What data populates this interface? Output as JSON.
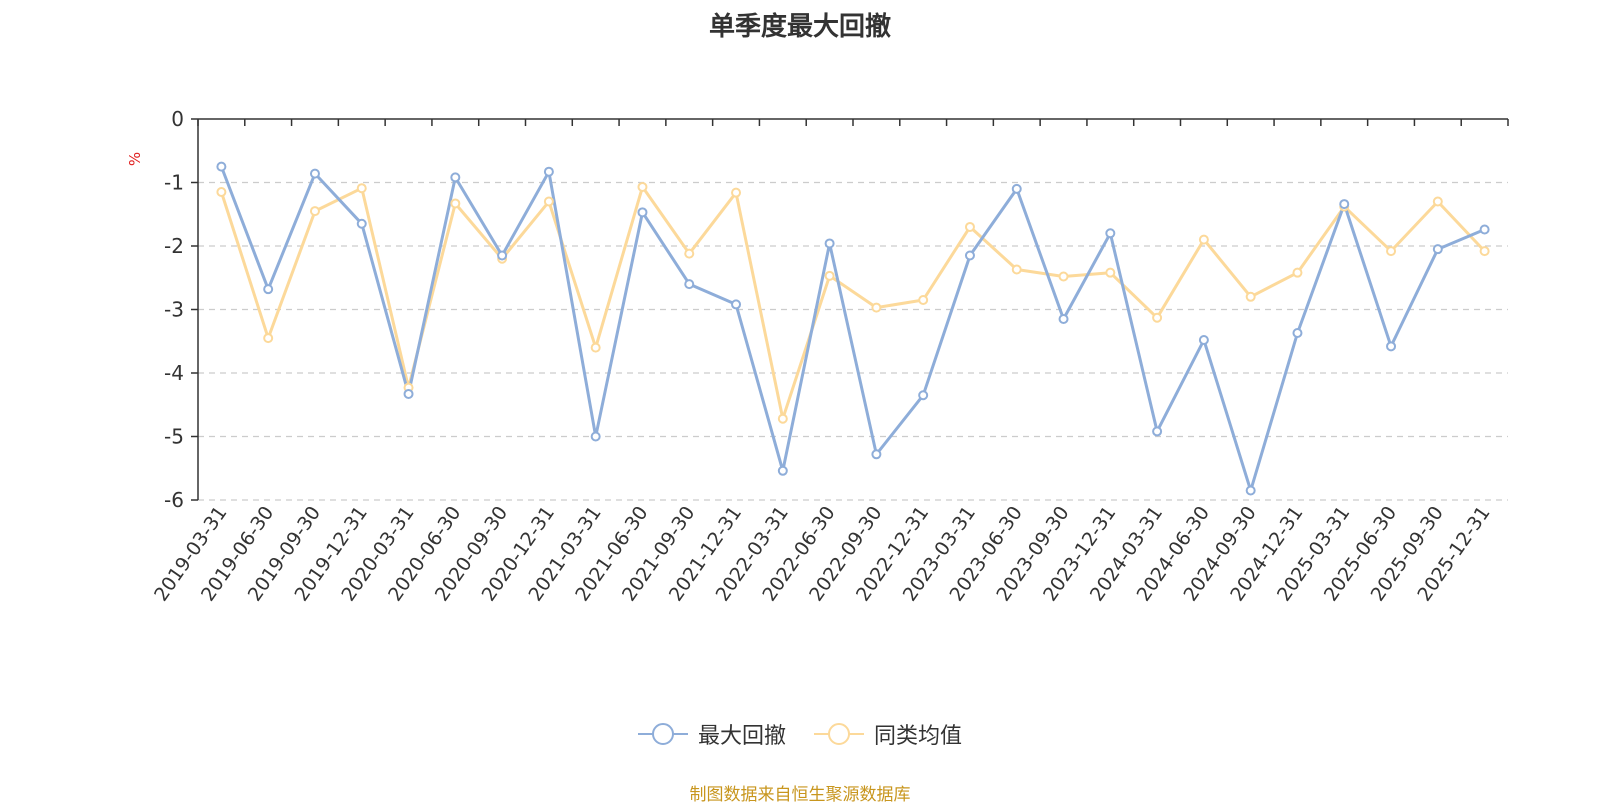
{
  "chart_data": {
    "type": "line",
    "title": "单季度最大回撤",
    "ylabel": "%",
    "ylim": [
      -6,
      0
    ],
    "yticks": [
      0,
      -1,
      -2,
      -3,
      -4,
      -5,
      -6
    ],
    "grid": true,
    "legend_position": "bottom",
    "categories": [
      "2019-03-31",
      "2019-06-30",
      "2019-09-30",
      "2019-12-31",
      "2020-03-31",
      "2020-06-30",
      "2020-09-30",
      "2020-12-31",
      "2021-03-31",
      "2021-06-30",
      "2021-09-30",
      "2021-12-31",
      "2022-03-31",
      "2022-06-30",
      "2022-09-30",
      "2022-12-31",
      "2023-03-31",
      "2023-06-30",
      "2023-09-30",
      "2023-12-31",
      "2024-03-31",
      "2024-06-30",
      "2024-09-30",
      "2024-12-31",
      "2025-03-31",
      "2025-06-30",
      "2025-09-30",
      "2025-12-31"
    ],
    "series": [
      {
        "name": "最大回撤",
        "color": "#8eadd9",
        "values": [
          -0.75,
          -2.68,
          -0.86,
          -1.65,
          -4.33,
          -0.92,
          -2.15,
          -0.83,
          -5.0,
          -1.47,
          -2.6,
          -2.92,
          -5.54,
          -1.96,
          -5.28,
          -4.35,
          -2.15,
          -1.1,
          -3.15,
          -1.8,
          -4.92,
          -3.48,
          -5.85,
          -3.37,
          -1.34,
          -3.58,
          -2.05,
          -1.74
        ]
      },
      {
        "name": "同类均值",
        "color": "#fcd99a",
        "values": [
          -1.15,
          -3.45,
          -1.45,
          -1.09,
          -4.23,
          -1.33,
          -2.2,
          -1.3,
          -3.6,
          -1.07,
          -2.12,
          -1.16,
          -4.72,
          -2.47,
          -2.97,
          -2.85,
          -1.7,
          -2.37,
          -2.48,
          -2.42,
          -3.13,
          -1.9,
          -2.8,
          -2.42,
          -1.38,
          -2.08,
          -1.3,
          -2.08
        ]
      }
    ]
  },
  "source_text": "制图数据来自恒生聚源数据库"
}
